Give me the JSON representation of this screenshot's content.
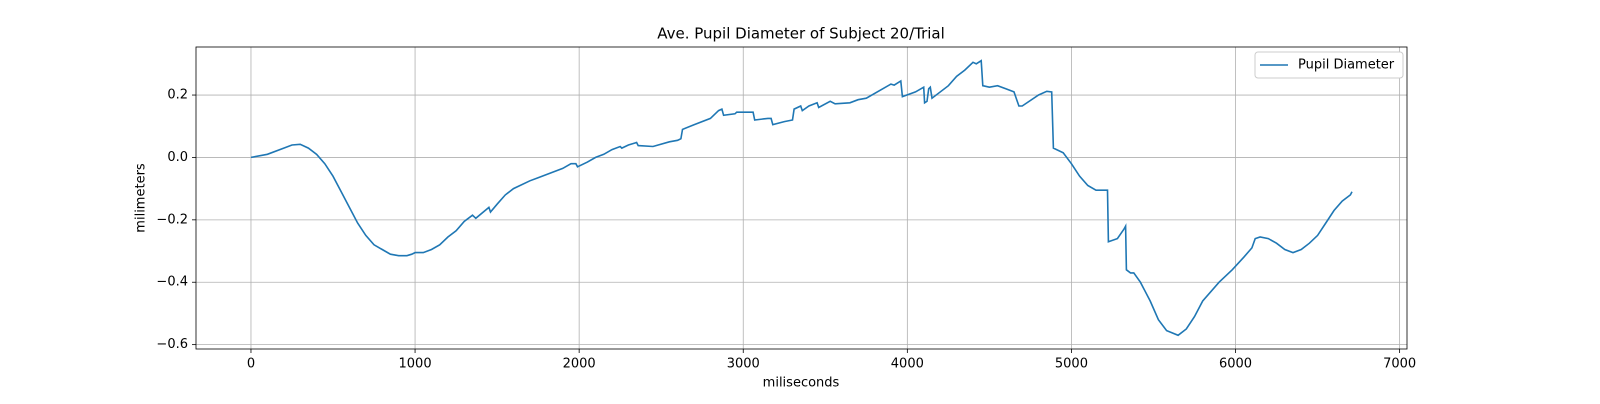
{
  "chart_data": {
    "type": "line",
    "title": "Ave. Pupil Diameter of Subject 20/Trial",
    "xlabel": "miliseconds",
    "ylabel": "milimeters",
    "x": [
      0,
      100,
      200,
      250,
      300,
      350,
      400,
      450,
      500,
      550,
      600,
      650,
      700,
      750,
      800,
      850,
      900,
      950,
      980,
      1000,
      1050,
      1100,
      1150,
      1200,
      1250,
      1300,
      1350,
      1370,
      1450,
      1460,
      1500,
      1550,
      1600,
      1700,
      1750,
      1800,
      1900,
      1950,
      1980,
      1990,
      2050,
      2100,
      2150,
      2200,
      2250,
      2260,
      2300,
      2350,
      2360,
      2450,
      2550,
      2600,
      2620,
      2630,
      2700,
      2800,
      2850,
      2870,
      2880,
      2950,
      2960,
      3060,
      3070,
      3150,
      3170,
      3180,
      3250,
      3300,
      3310,
      3350,
      3360,
      3400,
      3450,
      3460,
      3530,
      3560,
      3650,
      3700,
      3750,
      3850,
      3900,
      3920,
      3960,
      3970,
      4050,
      4100,
      4105,
      4120,
      4130,
      4140,
      4150,
      4250,
      4300,
      4350,
      4400,
      4420,
      4450,
      4460,
      4500,
      4550,
      4600,
      4650,
      4680,
      4700,
      4800,
      4850,
      4880,
      4890,
      4950,
      5000,
      5050,
      5100,
      5150,
      5200,
      5220,
      5225,
      5280,
      5320,
      5330,
      5335,
      5360,
      5380,
      5420,
      5480,
      5530,
      5580,
      5650,
      5700,
      5750,
      5800,
      5900,
      5980,
      6050,
      6100,
      6120,
      6150,
      6200,
      6250,
      6300,
      6350,
      6400,
      6450,
      6500,
      6550,
      6600,
      6650,
      6700,
      6710
    ],
    "series": [
      {
        "name": "Pupil Diameter",
        "color": "#1f77b4",
        "values": [
          0,
          0.01,
          0.03,
          0.04,
          0.042,
          0.03,
          0.01,
          -0.02,
          -0.06,
          -0.11,
          -0.16,
          -0.21,
          -0.25,
          -0.28,
          -0.295,
          -0.31,
          -0.315,
          -0.315,
          -0.31,
          -0.305,
          -0.305,
          -0.295,
          -0.28,
          -0.255,
          -0.235,
          -0.205,
          -0.185,
          -0.195,
          -0.16,
          -0.175,
          -0.15,
          -0.12,
          -0.1,
          -0.075,
          -0.065,
          -0.055,
          -0.035,
          -0.02,
          -0.02,
          -0.03,
          -0.015,
          0.0,
          0.01,
          0.025,
          0.035,
          0.03,
          0.04,
          0.048,
          0.038,
          0.035,
          0.05,
          0.055,
          0.06,
          0.09,
          0.105,
          0.125,
          0.15,
          0.155,
          0.135,
          0.14,
          0.145,
          0.145,
          0.12,
          0.125,
          0.125,
          0.105,
          0.115,
          0.12,
          0.155,
          0.165,
          0.15,
          0.165,
          0.175,
          0.16,
          0.18,
          0.172,
          0.175,
          0.185,
          0.19,
          0.22,
          0.235,
          0.232,
          0.245,
          0.195,
          0.21,
          0.225,
          0.175,
          0.18,
          0.22,
          0.225,
          0.19,
          0.23,
          0.26,
          0.28,
          0.305,
          0.3,
          0.31,
          0.23,
          0.225,
          0.23,
          0.22,
          0.21,
          0.165,
          0.165,
          0.2,
          0.212,
          0.21,
          0.03,
          0.015,
          -0.02,
          -0.06,
          -0.09,
          -0.105,
          -0.105,
          -0.105,
          -0.27,
          -0.26,
          -0.23,
          -0.22,
          -0.36,
          -0.37,
          -0.37,
          -0.4,
          -0.46,
          -0.52,
          -0.555,
          -0.57,
          -0.55,
          -0.51,
          -0.46,
          -0.4,
          -0.36,
          -0.32,
          -0.29,
          -0.26,
          -0.255,
          -0.26,
          -0.275,
          -0.295,
          -0.305,
          -0.295,
          -0.275,
          -0.25,
          -0.21,
          -0.17,
          -0.14,
          -0.12,
          -0.11
        ]
      }
    ],
    "xlim": [
      -335,
      7045
    ],
    "xticks": [
      0,
      1000,
      2000,
      3000,
      4000,
      5000,
      6000,
      7000
    ],
    "ylim": [
      -0.614,
      0.354
    ],
    "yticks": [
      {
        "value": -0.6,
        "label": "−0.6"
      },
      {
        "value": -0.4,
        "label": "−0.4"
      },
      {
        "value": -0.2,
        "label": "−0.2"
      },
      {
        "value": 0,
        "label": "0.0"
      },
      0.2
    ],
    "grid": true,
    "legend": "upper right"
  }
}
